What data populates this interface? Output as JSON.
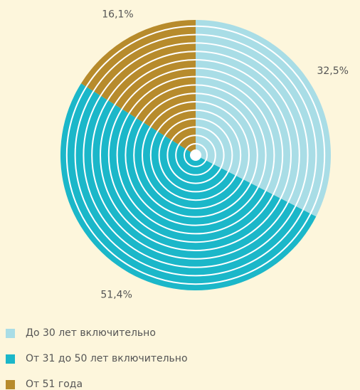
{
  "chart_data": {
    "type": "pie",
    "categories": [
      "До 30 лет включительно",
      "От 31 до 50 лет включительно",
      "От 51 года"
    ],
    "values": [
      32.5,
      51.4,
      16.1
    ],
    "value_labels": [
      "32,5%",
      "51,4%",
      "16,1%"
    ],
    "colors": [
      "#a9dde6",
      "#1bb7c9",
      "#b78b2c"
    ],
    "legend": "bottom-left"
  }
}
